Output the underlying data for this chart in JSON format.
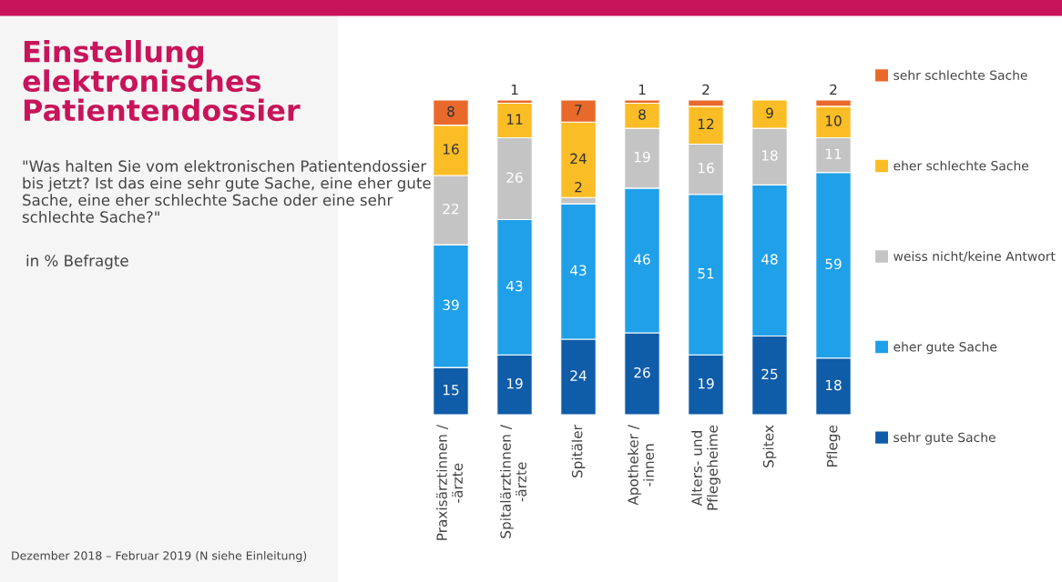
{
  "chart_data": {
    "type": "bar",
    "stacked": true,
    "title": "Einstellung elektronisches Patientendossier",
    "subtitle": "\"Was halten Sie vom elektronischen Patientendossier bis jetzt? Ist das eine sehr gute Sache, eine eher gute Sache, eine eher schlechte Sache oder eine sehr schlechte Sache?\"",
    "annotations": [
      "in % Befragte",
      "Dezember 2018 – Februar 2019 (N siehe Einleitung)"
    ],
    "categories": [
      "Praxisärztinnen / -ärzte",
      "Spitalärztinnen / -ärzte",
      "Spitäler",
      "Apotheker / -innen",
      "Alters- und Pflegeheime",
      "Spitex",
      "Pflege"
    ],
    "series": [
      {
        "name": "sehr gute Sache",
        "color": "#0f5ca8",
        "values": [
          15,
          19,
          24,
          26,
          19,
          25,
          18
        ],
        "value_labels": [
          "15",
          "19",
          "24",
          "26",
          "19",
          "25",
          "18"
        ]
      },
      {
        "name": "eher gute Sache",
        "color": "#1fa0e8",
        "values": [
          39,
          43,
          43,
          46,
          51,
          48,
          59
        ],
        "value_labels": [
          "39",
          "43",
          "43",
          "46",
          "51",
          "48",
          "59"
        ]
      },
      {
        "name": "weiss nicht/keine Antwort",
        "color": "#c4c4c4",
        "values": [
          22,
          26,
          2,
          19,
          16,
          18,
          11
        ],
        "value_labels": [
          "22",
          "26",
          "2",
          "19",
          "16",
          "18",
          "11"
        ]
      },
      {
        "name": "eher schlechte Sache",
        "color": "#fbbd26",
        "values": [
          16,
          11,
          24,
          8,
          12,
          9,
          10
        ],
        "value_labels": [
          "16",
          "11",
          "24",
          "8",
          "12",
          "9",
          "10"
        ]
      },
      {
        "name": "sehr schlechte Sache",
        "color": "#e8692a",
        "values": [
          8,
          1,
          7,
          1,
          2,
          null,
          2
        ],
        "value_labels": [
          "8",
          "1",
          "7",
          "1",
          "2",
          null,
          "2"
        ]
      }
    ],
    "legend": "right"
  }
}
